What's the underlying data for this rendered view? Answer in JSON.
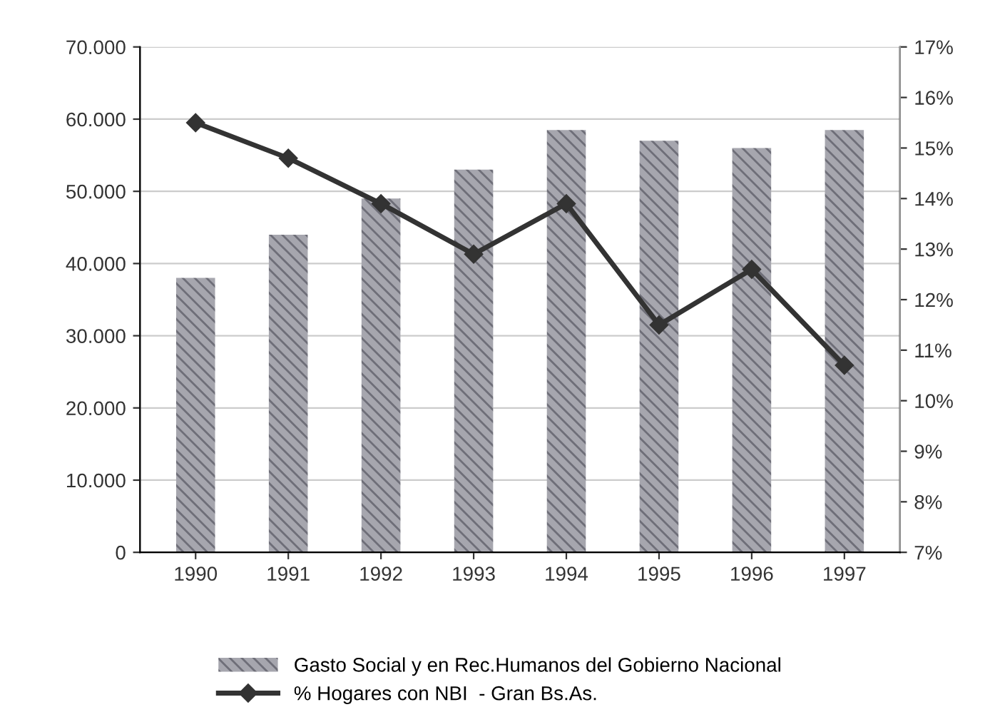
{
  "chart_data": {
    "type": "bar",
    "categories": [
      "1990",
      "1991",
      "1992",
      "1993",
      "1994",
      "1995",
      "1996",
      "1997"
    ],
    "series": [
      {
        "name": "Gasto Social y en Rec.Humanos del Gobierno Nacional",
        "color": "#a6a6ae",
        "values": [
          38000,
          44000,
          49000,
          53000,
          58500,
          57000,
          56000,
          58500
        ]
      },
      {
        "name": "% Hogares con NBI  - Gran Bs.As.",
        "type": "line",
        "axis": "y2",
        "color": "#333333",
        "marker": "diamond",
        "values": [
          15.5,
          14.8,
          13.9,
          12.9,
          13.9,
          11.5,
          12.6,
          10.7
        ]
      }
    ],
    "ylim": [
      0,
      70000
    ],
    "yticks": [
      0,
      {
        "value": 10000,
        "label": "10.000"
      },
      {
        "value": 20000,
        "label": "20.000"
      },
      {
        "value": 30000,
        "label": "30.000"
      },
      {
        "value": 40000,
        "label": "40.000"
      },
      {
        "value": 50000,
        "label": "50.000"
      },
      {
        "value": 60000,
        "label": "60.000"
      },
      {
        "value": 70000,
        "label": "70.000"
      }
    ],
    "y2lim": [
      7,
      17
    ],
    "y2ticks": [
      {
        "value": 7,
        "label": "7%"
      },
      {
        "value": 8,
        "label": "8%"
      },
      {
        "value": 9,
        "label": "9%"
      },
      {
        "value": 10,
        "label": "10%"
      },
      {
        "value": 11,
        "label": "11%"
      },
      {
        "value": 12,
        "label": "12%"
      },
      {
        "value": 13,
        "label": "13%"
      },
      {
        "value": 14,
        "label": "14%"
      },
      {
        "value": 15,
        "label": "15%"
      },
      {
        "value": 16,
        "label": "16%"
      },
      {
        "value": 17,
        "label": "17%"
      }
    ],
    "grid": "y",
    "legend": "bottom"
  }
}
